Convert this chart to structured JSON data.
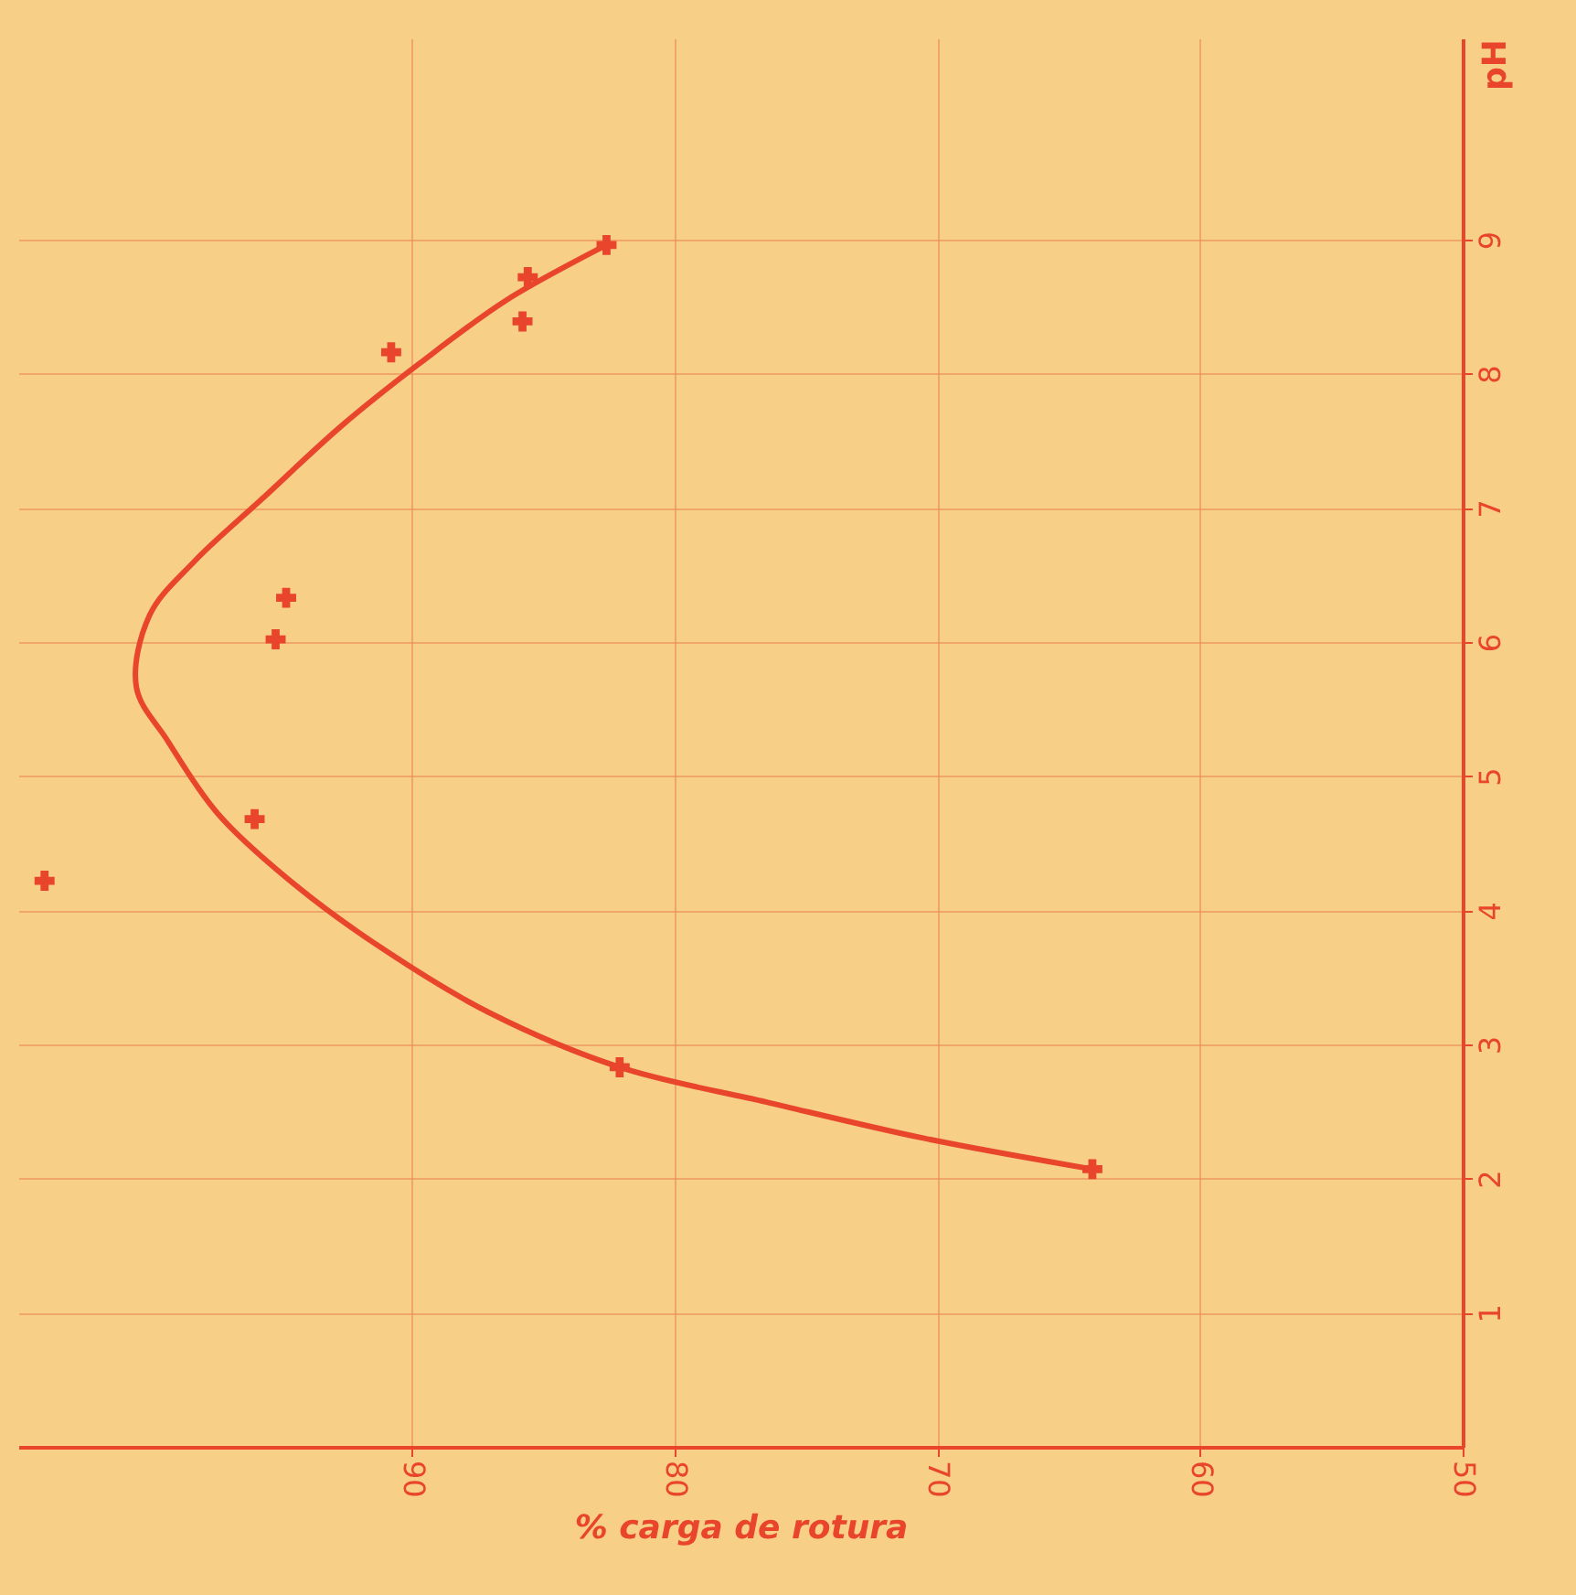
{
  "chart_data": {
    "type": "scatter",
    "xlabel": "% carga de rotura",
    "ylabel": "pH",
    "xlim": [
      105,
      50
    ],
    "xticks": [
      50,
      60,
      70,
      80,
      90
    ],
    "ylim": [
      0,
      10.5
    ],
    "yticks": [
      1,
      2,
      3,
      4,
      5,
      6,
      7,
      8,
      9
    ],
    "grid": true,
    "series": [
      {
        "type": "line",
        "color": "#e8452c",
        "line_style": "solid",
        "x": [
          64.1,
          70.5,
          76.5,
          82.1,
          87.1,
          91.1,
          94.4,
          97.4,
          99.3,
          100.5,
          100.0,
          98.3,
          95.7,
          92.7,
          89.7,
          86.4,
          82.6
        ],
        "values": [
          2.07,
          2.3,
          2.57,
          2.83,
          3.24,
          3.71,
          4.18,
          4.72,
          5.26,
          5.66,
          6.2,
          6.6,
          7.07,
          7.61,
          8.08,
          8.55,
          8.96
        ]
      },
      {
        "type": "scatter",
        "color": "#e8452c",
        "marker": "cross",
        "x": [
          64.1,
          82.1,
          96.0,
          104.0,
          95.2,
          94.8,
          90.8,
          85.8,
          85.6,
          82.6
        ],
        "values": [
          2.07,
          2.83,
          4.68,
          4.22,
          6.02,
          6.33,
          8.16,
          8.39,
          8.72,
          8.96
        ]
      }
    ]
  }
}
